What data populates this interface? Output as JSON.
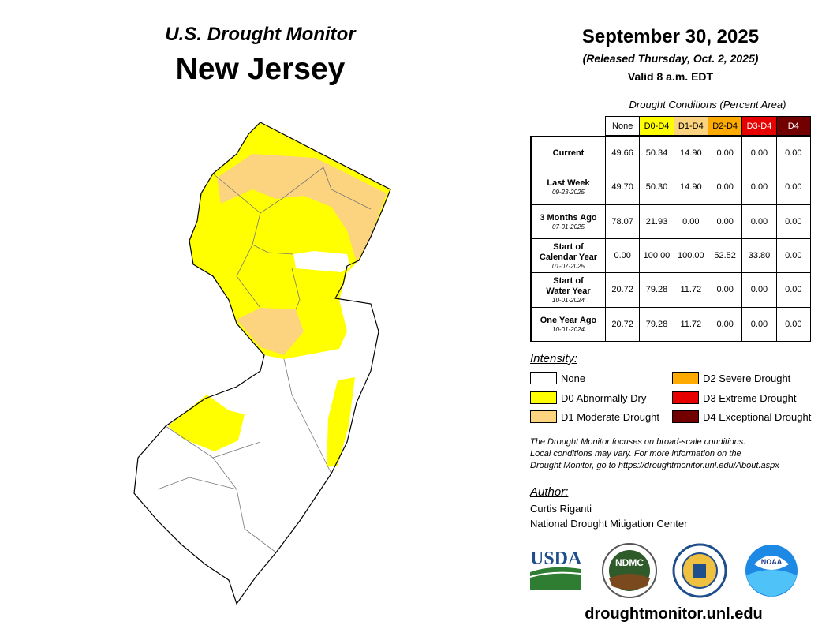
{
  "header": {
    "title": "U.S. Drought Monitor",
    "state": "New Jersey",
    "date": "September 30, 2025",
    "released": "(Released Thursday, Oct. 2, 2025)",
    "valid": "Valid 8 a.m. EDT"
  },
  "table": {
    "caption": "Drought Conditions (Percent Area)",
    "columns": [
      "None",
      "D0-D4",
      "D1-D4",
      "D2-D4",
      "D3-D4",
      "D4"
    ],
    "column_colors": [
      "#ffffff",
      "#ffff00",
      "#fcd37f",
      "#ffaa00",
      "#e60000",
      "#730000"
    ],
    "column_text_colors": [
      "#000000",
      "#000000",
      "#000000",
      "#000000",
      "#ffffff",
      "#ffffff"
    ],
    "rows": [
      {
        "label": [
          "Current"
        ],
        "values": [
          "49.66",
          "50.34",
          "14.90",
          "0.00",
          "0.00",
          "0.00"
        ]
      },
      {
        "label": [
          "Last Week"
        ],
        "date": "09-23-2025",
        "values": [
          "49.70",
          "50.30",
          "14.90",
          "0.00",
          "0.00",
          "0.00"
        ]
      },
      {
        "label": [
          "3 Months Ago"
        ],
        "date": "07-01-2025",
        "values": [
          "78.07",
          "21.93",
          "0.00",
          "0.00",
          "0.00",
          "0.00"
        ]
      },
      {
        "label": [
          "Start of",
          "Calendar Year"
        ],
        "date": "01-07-2025",
        "values": [
          "0.00",
          "100.00",
          "100.00",
          "52.52",
          "33.80",
          "0.00"
        ]
      },
      {
        "label": [
          "Start of",
          "Water Year"
        ],
        "date": "10-01-2024",
        "values": [
          "20.72",
          "79.28",
          "11.72",
          "0.00",
          "0.00",
          "0.00"
        ]
      },
      {
        "label": [
          "One Year Ago"
        ],
        "date": "10-01-2024",
        "values": [
          "20.72",
          "79.28",
          "11.72",
          "0.00",
          "0.00",
          "0.00"
        ]
      }
    ]
  },
  "legend": {
    "title": "Intensity:",
    "items": [
      {
        "label": "None",
        "color": "#ffffff"
      },
      {
        "label": "D0 Abnormally Dry",
        "color": "#ffff00"
      },
      {
        "label": "D1 Moderate Drought",
        "color": "#fcd37f"
      },
      {
        "label": "D2 Severe Drought",
        "color": "#ffaa00"
      },
      {
        "label": "D3 Extreme Drought",
        "color": "#e60000"
      },
      {
        "label": "D4 Exceptional Drought",
        "color": "#730000"
      }
    ]
  },
  "note": [
    "The Drought Monitor focuses on broad-scale conditions.",
    "Local conditions may vary. For more information on the",
    "Drought Monitor, go to https://droughtmonitor.unl.edu/About.aspx"
  ],
  "author": {
    "title": "Author:",
    "name": "Curtis Riganti",
    "org": "National Drought Mitigation Center"
  },
  "logos": [
    "USDA",
    "NDMC",
    "NOAA"
  ],
  "url": "droughtmonitor.unl.edu"
}
